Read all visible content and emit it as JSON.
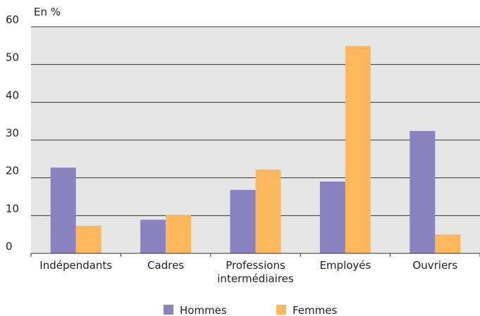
{
  "chart_data": {
    "type": "bar",
    "y_label": "En %",
    "categories": [
      "Indépendants",
      "Cadres",
      "Professions intermédiaires",
      "Employés",
      "Ouvriers"
    ],
    "series": [
      {
        "name": "Hommes",
        "color": "#8b82c0",
        "values": [
          22.7,
          8.9,
          16.8,
          19.0,
          32.4
        ]
      },
      {
        "name": "Femmes",
        "color": "#fdb75d",
        "values": [
          7.3,
          10.2,
          22.2,
          54.9,
          5.0
        ]
      }
    ],
    "ylim": [
      0,
      60
    ],
    "yticks": [
      0,
      10,
      20,
      30,
      40,
      50,
      60
    ],
    "grid": true
  }
}
